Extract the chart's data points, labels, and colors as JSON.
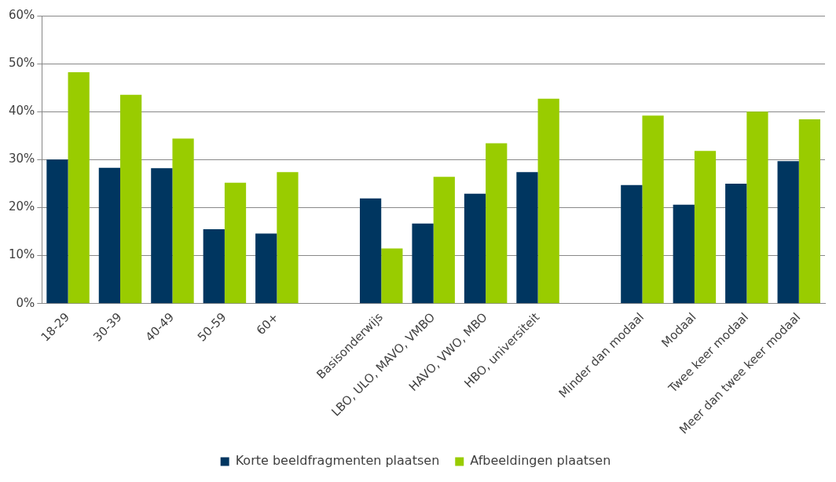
{
  "chart_data": {
    "type": "bar",
    "categories": [
      "18-29",
      "30-39",
      "40-49",
      "50-59",
      "60+",
      null,
      "Basisonderwijs",
      "LBO, ULO, MAVO, VMBO",
      "HAVO, VWO, MBO",
      "HBO, universiteit",
      null,
      "Minder dan modaal",
      "Modaal",
      "Twee keer modaal",
      "Meer dan twee keer modaal"
    ],
    "series": [
      {
        "name": "Korte beeldfragmenten plaatsen",
        "color": "#003660",
        "values": [
          30,
          28.3,
          28.2,
          15.5,
          14.6,
          null,
          21.9,
          16.7,
          22.9,
          27.4,
          null,
          24.7,
          20.6,
          25,
          29.7
        ]
      },
      {
        "name": "Afbeeldingen plaatsen",
        "color": "#99cc00",
        "values": [
          48.2,
          43.5,
          34.4,
          25.2,
          27.4,
          null,
          11.5,
          26.4,
          33.4,
          42.7,
          null,
          39.2,
          31.8,
          40,
          38.4
        ]
      }
    ],
    "ylim": [
      0,
      60
    ],
    "yticks": [
      {
        "value": 0,
        "label": "0%"
      },
      {
        "value": 10,
        "label": "10%"
      },
      {
        "value": 20,
        "label": "20%"
      },
      {
        "value": 30,
        "label": "30%"
      },
      {
        "value": 40,
        "label": "40%"
      },
      {
        "value": 50,
        "label": "50%"
      },
      {
        "value": 60,
        "label": "60%"
      }
    ],
    "grid": "y",
    "legend": "bottom"
  }
}
